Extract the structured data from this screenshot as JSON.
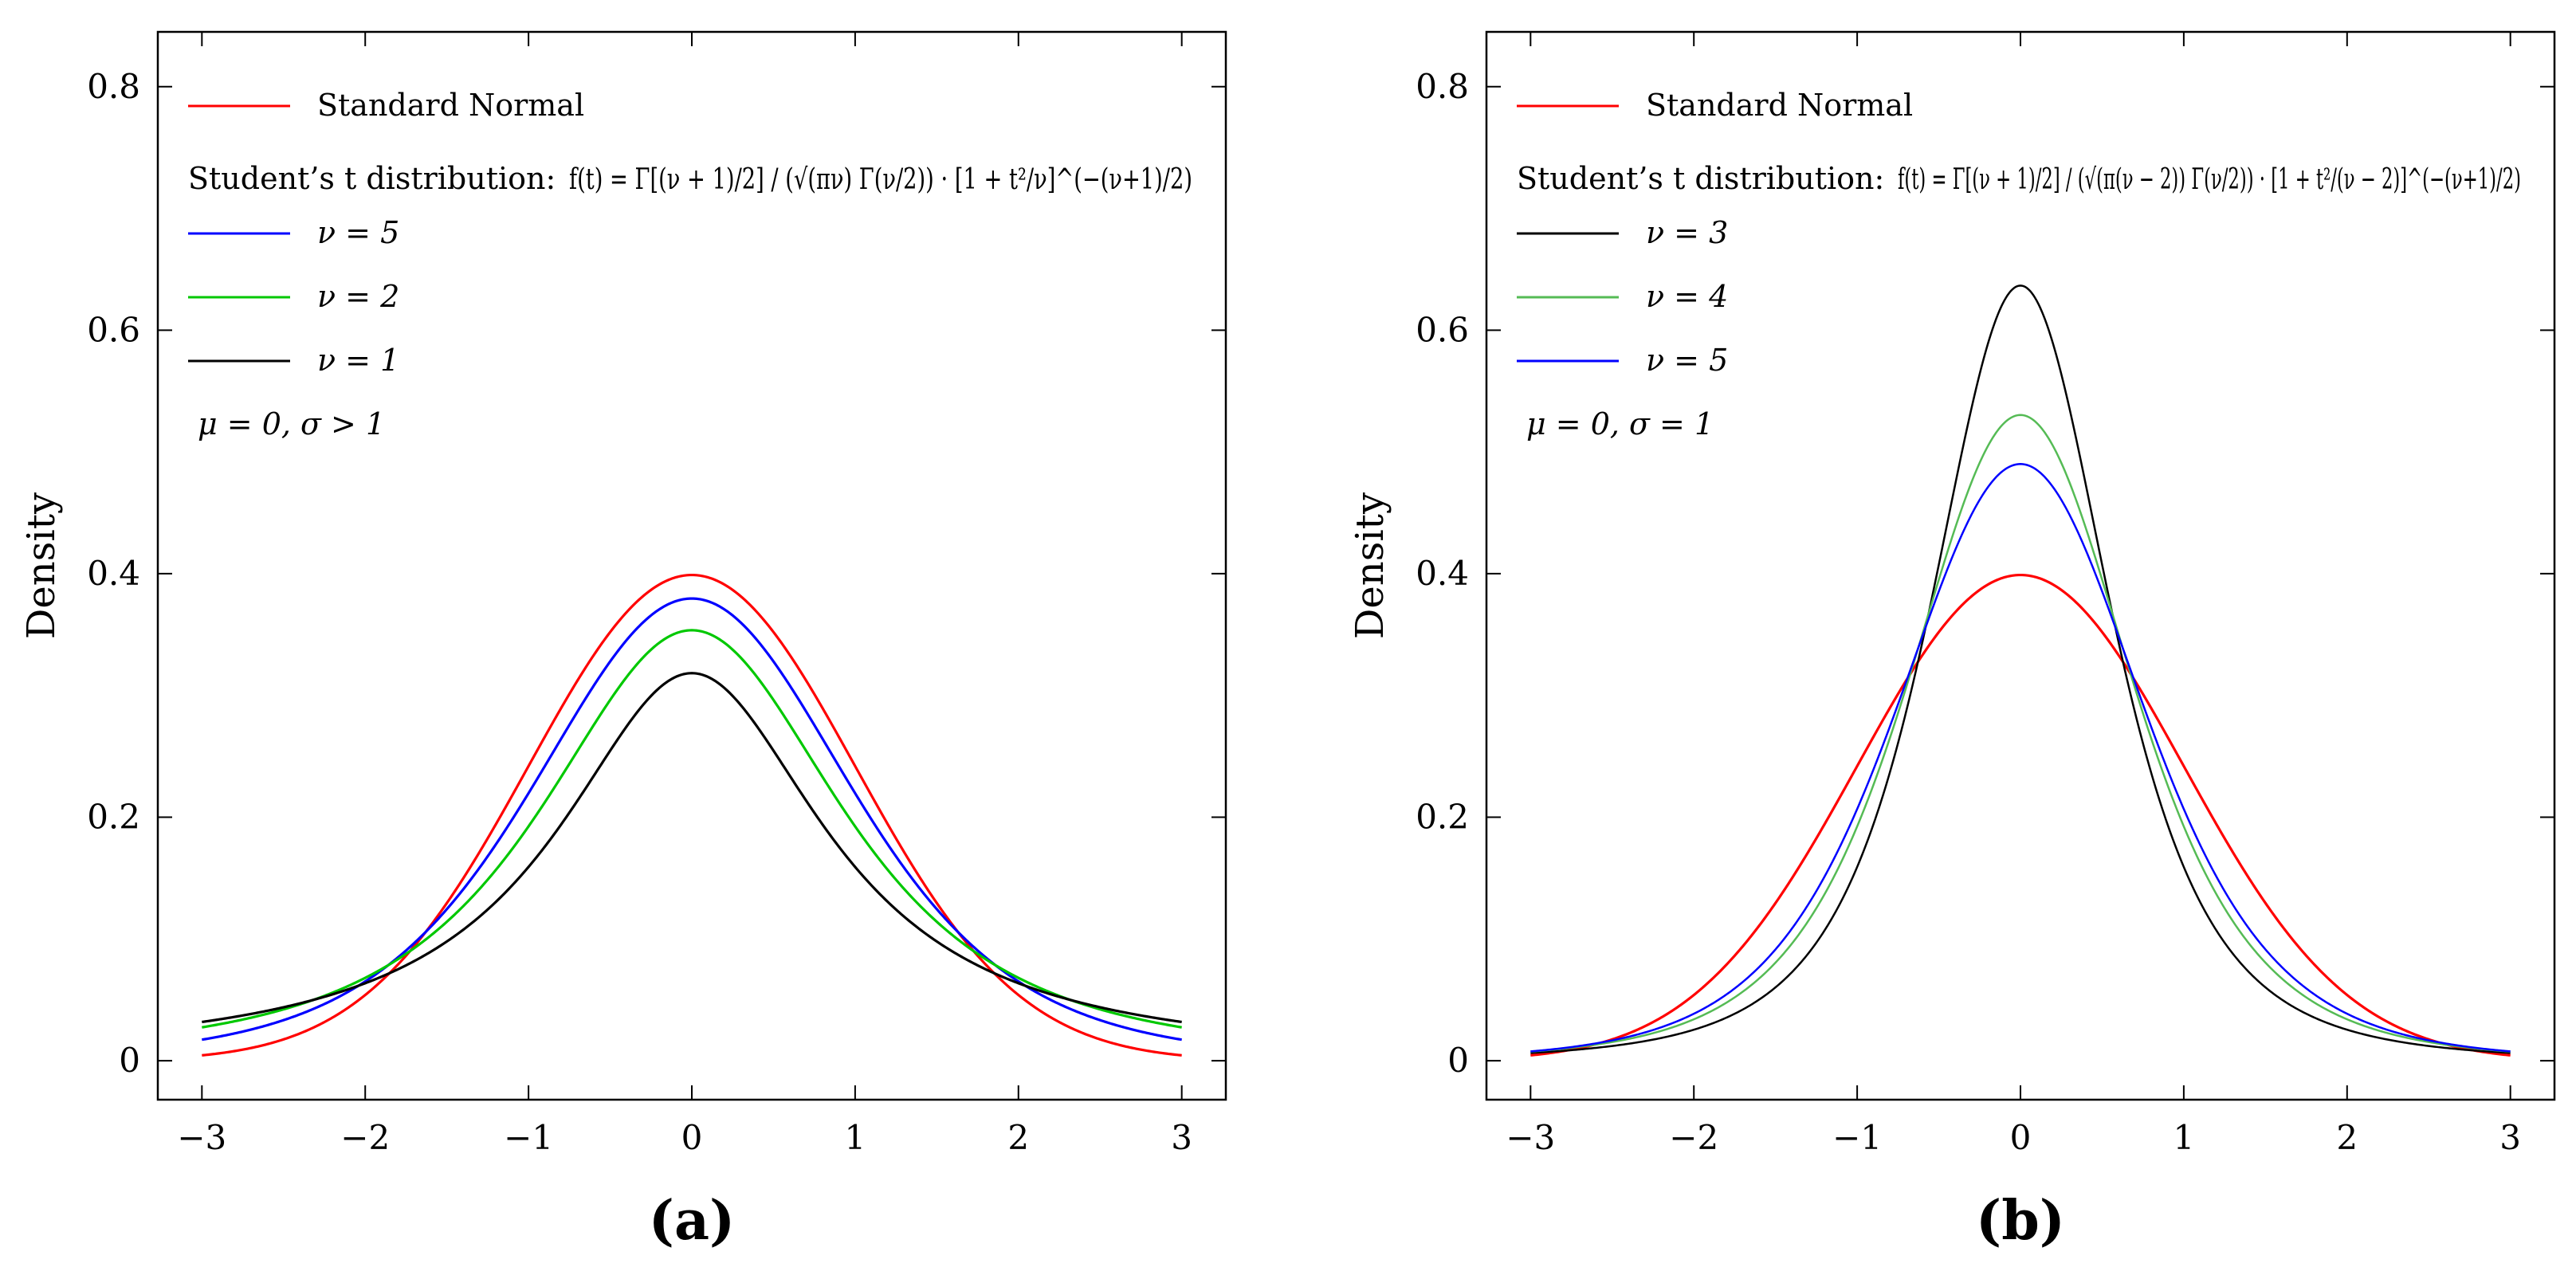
{
  "chart_data": [
    {
      "type": "line",
      "panel_label": "(a)",
      "ylabel": "Density",
      "xlabel": "",
      "xlim": [
        -3.27,
        3.27
      ],
      "ylim": [
        -0.032,
        0.845
      ],
      "xticks": [
        -3,
        -2,
        -1,
        0,
        1,
        2,
        3
      ],
      "xtick_labels": [
        "−3",
        "−2",
        "−1",
        "0",
        "1",
        "2",
        "3"
      ],
      "yticks": [
        0,
        0.2,
        0.4,
        0.6,
        0.8
      ],
      "ytick_labels": [
        "0",
        "0.2",
        "0.4",
        "0.6",
        "0.8"
      ],
      "legend_position": "upper-left",
      "formula_label": "Student’s t distribution:",
      "formula_text": "f(t) = Γ[(ν + 1)/2] / (√(πν) Γ(ν/2)) · [1 + t²/ν]^(−(ν+1)/2)",
      "annotation": "μ = 0,  σ > 1",
      "series": [
        {
          "name": "Standard Normal",
          "color": "#ff0000",
          "kind": "normal",
          "scale": 1,
          "x_range": [
            -3,
            3
          ]
        },
        {
          "name": "ν = 5",
          "color": "#0000ff",
          "kind": "t",
          "nu": 5,
          "scale": 1,
          "x_range": [
            -3,
            3
          ]
        },
        {
          "name": "ν = 2",
          "color": "#00c800",
          "kind": "t",
          "nu": 2,
          "scale": 1,
          "x_range": [
            -3,
            3
          ]
        },
        {
          "name": "ν = 1",
          "color": "#000000",
          "kind": "t",
          "nu": 1,
          "scale": 1,
          "x_range": [
            -3,
            3
          ]
        }
      ],
      "legend_order": [
        0,
        "formula",
        1,
        2,
        3,
        "annotation"
      ]
    },
    {
      "type": "line",
      "panel_label": "(b)",
      "ylabel": "Density",
      "xlabel": "",
      "xlim": [
        -3.27,
        3.27
      ],
      "ylim": [
        -0.032,
        0.845
      ],
      "xticks": [
        -3,
        -2,
        -1,
        0,
        1,
        2,
        3
      ],
      "xtick_labels": [
        "−3",
        "−2",
        "−1",
        "0",
        "1",
        "2",
        "3"
      ],
      "yticks": [
        0,
        0.2,
        0.4,
        0.6,
        0.8
      ],
      "ytick_labels": [
        "0",
        "0.2",
        "0.4",
        "0.6",
        "0.8"
      ],
      "legend_position": "upper-left",
      "formula_label": "Student’s t distribution:",
      "formula_text": "f(t) = Γ[(ν + 1)/2] / (√(π(ν − 2)) Γ(ν/2)) · [1 + t²/(ν − 2)]^(−(ν+1)/2)",
      "annotation": "μ = 0,  σ = 1",
      "series": [
        {
          "name": "Standard Normal",
          "color": "#ff0000",
          "kind": "normal",
          "scale": 1,
          "x_range": [
            -3,
            3
          ]
        },
        {
          "name": "ν = 3",
          "color": "#000000",
          "kind": "t",
          "nu": 3,
          "scale": 0.57735,
          "x_range": [
            -3,
            3
          ]
        },
        {
          "name": "ν = 4",
          "color": "#55bb55",
          "kind": "t",
          "nu": 4,
          "scale": 0.70711,
          "x_range": [
            -3,
            3
          ]
        },
        {
          "name": "ν = 5",
          "color": "#0000ff",
          "kind": "t",
          "nu": 5,
          "scale": 0.7746,
          "x_range": [
            -3,
            3
          ]
        }
      ],
      "legend_order": [
        0,
        "formula",
        1,
        2,
        3,
        "annotation"
      ]
    }
  ]
}
